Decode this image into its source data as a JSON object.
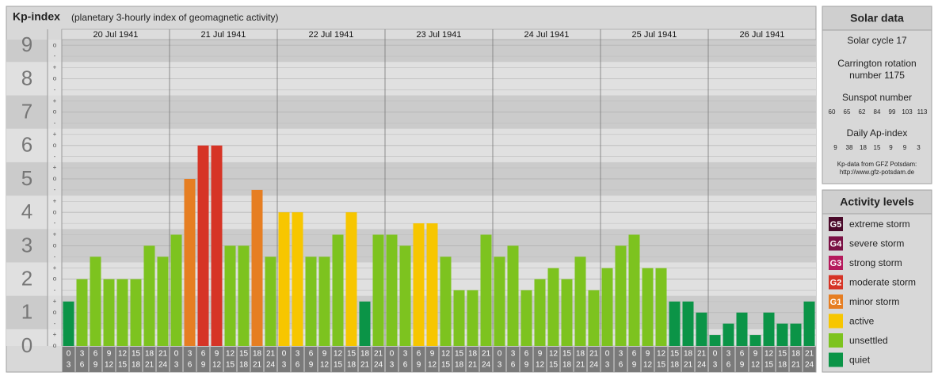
{
  "header": {
    "title": "Kp-index",
    "subtitle": "(planetary 3-hourly index of geomagnetic activity)"
  },
  "chart_data": {
    "type": "bar",
    "dates": [
      "20 Jul 1941",
      "21 Jul 1941",
      "22 Jul 1941",
      "23 Jul 1941",
      "24 Jul 1941",
      "25 Jul 1941",
      "26 Jul 1941"
    ],
    "categories": [
      [
        "0",
        "3"
      ],
      [
        "3",
        "6"
      ],
      [
        "6",
        "9"
      ],
      [
        "9",
        "12"
      ],
      [
        "12",
        "15"
      ],
      [
        "15",
        "18"
      ],
      [
        "18",
        "21"
      ],
      [
        "21",
        "24"
      ],
      [
        "0",
        "3"
      ],
      [
        "3",
        "6"
      ],
      [
        "6",
        "9"
      ],
      [
        "9",
        "12"
      ],
      [
        "12",
        "15"
      ],
      [
        "15",
        "18"
      ],
      [
        "18",
        "21"
      ],
      [
        "21",
        "24"
      ],
      [
        "0",
        "3"
      ],
      [
        "3",
        "6"
      ],
      [
        "6",
        "9"
      ],
      [
        "9",
        "12"
      ],
      [
        "12",
        "15"
      ],
      [
        "15",
        "18"
      ],
      [
        "18",
        "21"
      ],
      [
        "21",
        "24"
      ],
      [
        "0",
        "3"
      ],
      [
        "3",
        "6"
      ],
      [
        "6",
        "9"
      ],
      [
        "9",
        "12"
      ],
      [
        "12",
        "15"
      ],
      [
        "15",
        "18"
      ],
      [
        "18",
        "21"
      ],
      [
        "21",
        "24"
      ],
      [
        "0",
        "3"
      ],
      [
        "3",
        "6"
      ],
      [
        "6",
        "9"
      ],
      [
        "9",
        "12"
      ],
      [
        "12",
        "15"
      ],
      [
        "15",
        "18"
      ],
      [
        "18",
        "21"
      ],
      [
        "21",
        "24"
      ],
      [
        "0",
        "3"
      ],
      [
        "3",
        "6"
      ],
      [
        "6",
        "9"
      ],
      [
        "9",
        "12"
      ],
      [
        "12",
        "15"
      ],
      [
        "15",
        "18"
      ],
      [
        "18",
        "21"
      ],
      [
        "21",
        "24"
      ],
      [
        "0",
        "3"
      ],
      [
        "3",
        "6"
      ],
      [
        "6",
        "9"
      ],
      [
        "9",
        "12"
      ],
      [
        "12",
        "15"
      ],
      [
        "15",
        "18"
      ],
      [
        "18",
        "21"
      ],
      [
        "21",
        "24"
      ]
    ],
    "values": [
      1.33,
      2,
      2.67,
      2,
      2,
      2,
      3,
      2.67,
      3.33,
      5,
      6,
      6,
      3,
      3,
      4.67,
      2.67,
      4,
      4,
      2.67,
      2.67,
      3.33,
      4,
      1.33,
      3.33,
      3.33,
      3,
      3.67,
      3.67,
      2.67,
      1.67,
      1.67,
      3.33,
      2.67,
      3,
      1.67,
      2,
      2.33,
      2,
      2.67,
      1.67,
      2.33,
      3,
      3.33,
      2.33,
      2.33,
      1.33,
      1.33,
      1,
      0.33,
      0.67,
      1,
      0.33,
      1,
      0.67,
      0.67,
      1.33
    ],
    "colors": [
      "#0b9447",
      "#7dc31f",
      "#7dc31f",
      "#7dc31f",
      "#7dc31f",
      "#7dc31f",
      "#7dc31f",
      "#7dc31f",
      "#7dc31f",
      "#e67e22",
      "#d63426",
      "#d63426",
      "#7dc31f",
      "#7dc31f",
      "#e67e22",
      "#7dc31f",
      "#f7c600",
      "#f7c600",
      "#7dc31f",
      "#7dc31f",
      "#7dc31f",
      "#f7c600",
      "#0b9447",
      "#7dc31f",
      "#7dc31f",
      "#7dc31f",
      "#f7c600",
      "#f7c600",
      "#7dc31f",
      "#7dc31f",
      "#7dc31f",
      "#7dc31f",
      "#7dc31f",
      "#7dc31f",
      "#7dc31f",
      "#7dc31f",
      "#7dc31f",
      "#7dc31f",
      "#7dc31f",
      "#7dc31f",
      "#7dc31f",
      "#7dc31f",
      "#7dc31f",
      "#7dc31f",
      "#7dc31f",
      "#0b9447",
      "#0b9447",
      "#0b9447",
      "#0b9447",
      "#0b9447",
      "#0b9447",
      "#0b9447",
      "#0b9447",
      "#0b9447",
      "#0b9447",
      "#0b9447"
    ],
    "ylim": [
      0,
      9.17
    ],
    "yticks": [
      0,
      1,
      2,
      3,
      4,
      5,
      6,
      7,
      8,
      9
    ],
    "minor_yticks": [
      {
        "value": 0,
        "label": "o"
      },
      {
        "value": 0.33,
        "label": "+"
      },
      {
        "value": 0.67,
        "label": "-"
      },
      {
        "value": 1,
        "label": "o"
      },
      {
        "value": 1.33,
        "label": "+"
      },
      {
        "value": 1.67,
        "label": "-"
      },
      {
        "value": 2,
        "label": "o"
      },
      {
        "value": 2.33,
        "label": "+"
      },
      {
        "value": 2.67,
        "label": "-"
      },
      {
        "value": 3,
        "label": "o"
      },
      {
        "value": 3.33,
        "label": "+"
      },
      {
        "value": 3.67,
        "label": "-"
      },
      {
        "value": 4,
        "label": "o"
      },
      {
        "value": 4.33,
        "label": "+"
      },
      {
        "value": 4.67,
        "label": "-"
      },
      {
        "value": 5,
        "label": "o"
      },
      {
        "value": 5.33,
        "label": "+"
      },
      {
        "value": 5.67,
        "label": "-"
      },
      {
        "value": 6,
        "label": "o"
      },
      {
        "value": 6.33,
        "label": "+"
      },
      {
        "value": 6.67,
        "label": "-"
      },
      {
        "value": 7,
        "label": "o"
      },
      {
        "value": 7.33,
        "label": "+"
      },
      {
        "value": 7.67,
        "label": "-"
      },
      {
        "value": 8,
        "label": "o"
      },
      {
        "value": 8.33,
        "label": "+"
      },
      {
        "value": 8.67,
        "label": "-"
      },
      {
        "value": 9,
        "label": "o"
      }
    ]
  },
  "solar_data": {
    "title": "Solar data",
    "solar_cycle": "Solar cycle 17",
    "carrington": [
      "Carrington rotation",
      "number 1175"
    ],
    "sunspot_title": "Sunspot number",
    "sunspot_numbers": [
      60,
      65,
      62,
      84,
      99,
      103,
      113
    ],
    "ap_title": "Daily Ap-index",
    "ap_values": [
      9,
      38,
      18,
      15,
      9,
      9,
      3
    ],
    "source": [
      "Kp-data from GFZ Potsdam:",
      "http://www.gfz-potsdam.de"
    ]
  },
  "activity_levels": {
    "title": "Activity levels",
    "items": [
      {
        "badge": "G5",
        "label": "extreme storm",
        "color": "#4a0a2a"
      },
      {
        "badge": "G4",
        "label": "severe storm",
        "color": "#7a1044"
      },
      {
        "badge": "G3",
        "label": "strong storm",
        "color": "#b51a5c"
      },
      {
        "badge": "G2",
        "label": "moderate storm",
        "color": "#d63426"
      },
      {
        "badge": "G1",
        "label": "minor storm",
        "color": "#e67e22"
      },
      {
        "label": "active",
        "color": "#f7c600"
      },
      {
        "label": "unsettled",
        "color": "#7dc31f"
      },
      {
        "label": "quiet",
        "color": "#0b9447"
      }
    ]
  }
}
